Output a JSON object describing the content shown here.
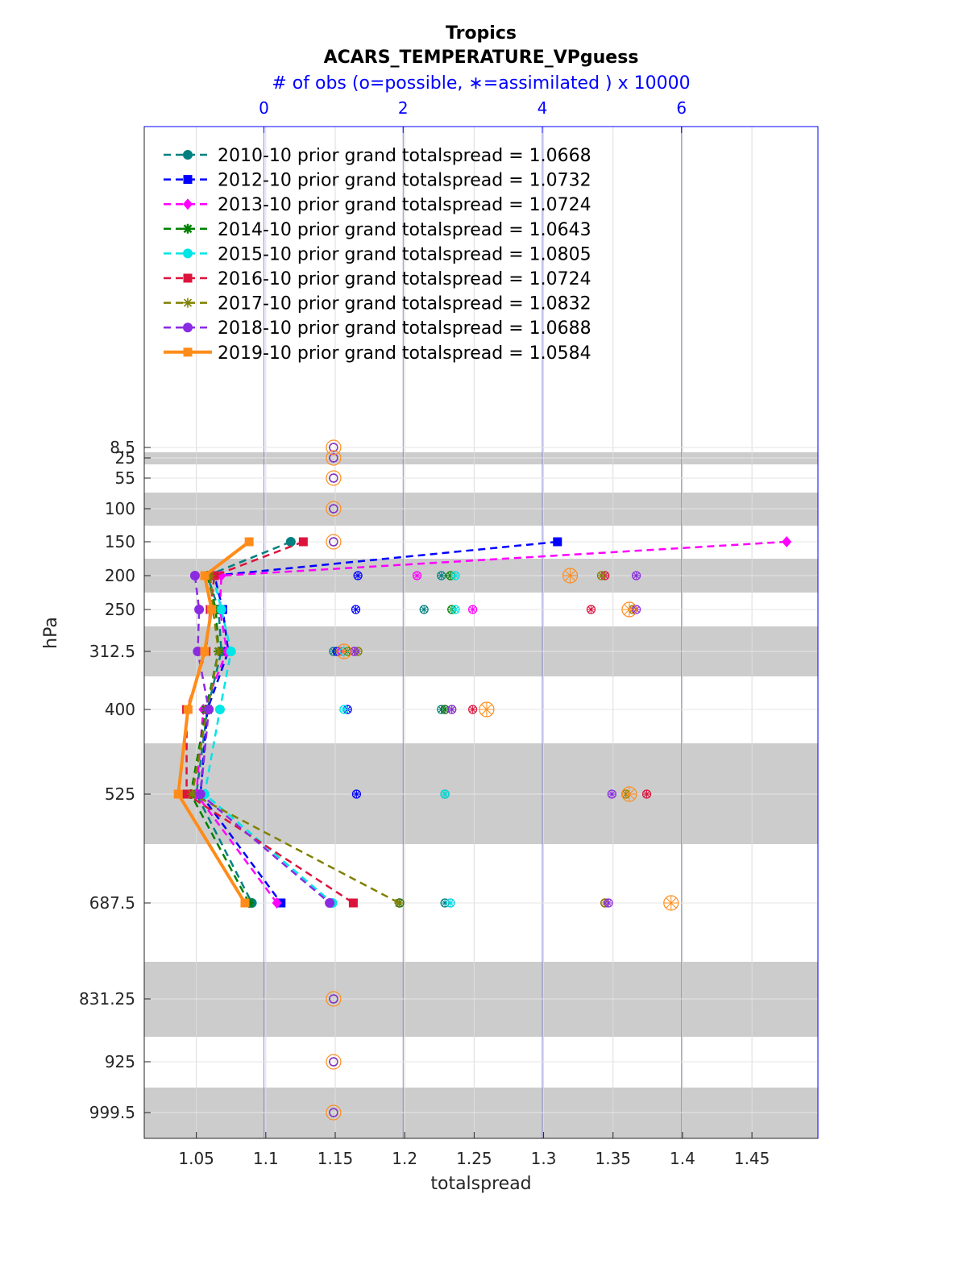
{
  "chart_data": {
    "type": "line",
    "title": "Tropics",
    "subtitle": "ACARS_TEMPERATURE_VPguess",
    "top_axis_label": "# of obs (o=possible, ∗=assimilated ) x 10000",
    "top_axis_ticks": [
      "0",
      "2",
      "4",
      "6"
    ],
    "top_axis_range": [
      -1.72,
      7.96
    ],
    "xlabel": "totalspread",
    "ylabel": "hPa",
    "xlim": [
      1.0125,
      1.4975
    ],
    "x_ticks": [
      1.05,
      1.1,
      1.15,
      1.2,
      1.25,
      1.3,
      1.35,
      1.4,
      1.45
    ],
    "x_tick_labels": [
      "1.05",
      "1.1",
      "1.15",
      "1.2",
      "1.25",
      "1.3",
      "1.35",
      "1.4",
      "1.45"
    ],
    "levels": [
      8.5,
      25,
      55,
      100,
      150,
      200,
      250,
      312.5,
      400,
      525,
      687.5,
      831.25,
      925,
      999.5
    ],
    "level_labels": [
      "8.5",
      "25",
      "55",
      "100",
      "150",
      "200",
      "250",
      "312.5",
      "400",
      "525",
      "687.5",
      "831.25",
      "925",
      "999.5"
    ],
    "legend_position": "top-left",
    "series": [
      {
        "name": "2010-10 prior grand totalspread = 1.0668",
        "color": "#008080",
        "marker": "circle",
        "style": "dashed",
        "values": [
          [
            1.118,
            150
          ],
          [
            1.058,
            200
          ],
          [
            1.066,
            250
          ],
          [
            1.068,
            312.5
          ],
          [
            1.058,
            400
          ],
          [
            1.05,
            525
          ],
          [
            1.09,
            687.5
          ]
        ]
      },
      {
        "name": "2012-10 prior grand totalspread = 1.0732",
        "color": "#0000ff",
        "marker": "square",
        "style": "dashed",
        "values": [
          [
            1.31,
            150
          ],
          [
            1.063,
            200
          ],
          [
            1.069,
            250
          ],
          [
            1.073,
            312.5
          ],
          [
            1.058,
            400
          ],
          [
            1.053,
            525
          ],
          [
            1.111,
            687.5
          ]
        ]
      },
      {
        "name": "2013-10 prior grand totalspread = 1.0724",
        "color": "#ff00ff",
        "marker": "diamond",
        "style": "dashed",
        "values": [
          [
            1.475,
            150
          ],
          [
            1.068,
            200
          ],
          [
            1.067,
            250
          ],
          [
            1.072,
            312.5
          ],
          [
            1.055,
            400
          ],
          [
            1.05,
            525
          ],
          [
            1.108,
            687.5
          ]
        ]
      },
      {
        "name": "2014-10 prior grand totalspread = 1.0643",
        "color": "#008000",
        "marker": "star",
        "style": "dashed",
        "values": [
          [
            1.058,
            200
          ],
          [
            1.064,
            250
          ],
          [
            1.066,
            312.5
          ],
          [
            1.057,
            400
          ],
          [
            1.046,
            525
          ],
          [
            1.088,
            687.5
          ]
        ]
      },
      {
        "name": "2015-10 prior grand totalspread = 1.0805",
        "color": "#00e5e5",
        "marker": "circle",
        "style": "dashed",
        "values": [
          [
            1.062,
            200
          ],
          [
            1.068,
            250
          ],
          [
            1.075,
            312.5
          ],
          [
            1.067,
            400
          ],
          [
            1.056,
            525
          ],
          [
            1.148,
            687.5
          ]
        ]
      },
      {
        "name": "2016-10 prior grand totalspread = 1.0724",
        "color": "#dc143c",
        "marker": "square",
        "style": "dashed",
        "values": [
          [
            1.127,
            150
          ],
          [
            1.063,
            200
          ],
          [
            1.06,
            250
          ],
          [
            1.057,
            312.5
          ],
          [
            1.043,
            400
          ],
          [
            1.043,
            525
          ],
          [
            1.163,
            687.5
          ]
        ]
      },
      {
        "name": "2017-10 prior grand totalspread = 1.0832",
        "color": "#808000",
        "marker": "asterisk",
        "style": "dashed",
        "values": [
          [
            1.06,
            200
          ],
          [
            1.062,
            250
          ],
          [
            1.066,
            312.5
          ],
          [
            1.058,
            400
          ],
          [
            1.047,
            525
          ],
          [
            1.196,
            687.5
          ]
        ]
      },
      {
        "name": "2018-10 prior grand totalspread = 1.0688",
        "color": "#8a2be2",
        "marker": "circle",
        "style": "dashed",
        "values": [
          [
            1.049,
            200
          ],
          [
            1.052,
            250
          ],
          [
            1.051,
            312.5
          ],
          [
            1.059,
            400
          ],
          [
            1.053,
            525
          ],
          [
            1.146,
            687.5
          ]
        ]
      },
      {
        "name": "2019-10 prior grand totalspread = 1.0584",
        "color": "#ff8c1a",
        "marker": "square",
        "style": "solid",
        "values": [
          [
            1.088,
            150
          ],
          [
            1.056,
            200
          ],
          [
            1.061,
            250
          ],
          [
            1.056,
            312.5
          ],
          [
            1.044,
            400
          ],
          [
            1.037,
            525
          ],
          [
            1.085,
            687.5
          ]
        ]
      }
    ],
    "obs_counts": [
      {
        "series": "2010-10",
        "color": "#008080",
        "possible": [
          [
            1.0,
            8.5
          ],
          [
            1.0,
            25
          ],
          [
            1.0,
            55
          ],
          [
            1.0,
            100
          ],
          [
            1.0,
            150
          ],
          [
            2.55,
            200
          ],
          [
            2.3,
            250
          ],
          [
            1.0,
            312.5
          ],
          [
            2.55,
            400
          ],
          [
            2.6,
            525
          ],
          [
            2.6,
            687.5
          ],
          [
            1.0,
            831.25
          ],
          [
            1.0,
            925
          ],
          [
            1.0,
            999.5
          ]
        ],
        "assimilated": [
          [
            2.55,
            200
          ],
          [
            2.3,
            250
          ],
          [
            1.0,
            312.5
          ],
          [
            2.55,
            400
          ],
          [
            2.6,
            525
          ],
          [
            2.6,
            687.5
          ]
        ]
      },
      {
        "series": "2012-10",
        "color": "#0000ff",
        "possible": [
          [
            1.0,
            8.5
          ],
          [
            1.0,
            25
          ],
          [
            1.0,
            55
          ],
          [
            1.0,
            100
          ],
          [
            1.0,
            150
          ],
          [
            1.35,
            200
          ],
          [
            1.32,
            250
          ],
          [
            1.05,
            312.5
          ],
          [
            1.2,
            400
          ],
          [
            1.33,
            525
          ],
          [
            1.95,
            687.5
          ],
          [
            1.0,
            831.25
          ],
          [
            1.0,
            925
          ],
          [
            1.0,
            999.5
          ]
        ],
        "assimilated": [
          [
            1.35,
            200
          ],
          [
            1.32,
            250
          ],
          [
            1.05,
            312.5
          ],
          [
            1.2,
            400
          ],
          [
            1.33,
            525
          ],
          [
            1.95,
            687.5
          ]
        ]
      },
      {
        "series": "2013-10",
        "color": "#ff00ff",
        "possible": [
          [
            1.0,
            8.5
          ],
          [
            1.0,
            25
          ],
          [
            1.0,
            55
          ],
          [
            1.0,
            100
          ],
          [
            1.0,
            150
          ],
          [
            2.2,
            200
          ],
          [
            3.0,
            250
          ],
          [
            1.12,
            312.5
          ],
          [
            2.6,
            400
          ],
          [
            2.6,
            525
          ],
          [
            2.68,
            687.5
          ],
          [
            1.0,
            831.25
          ],
          [
            1.0,
            925
          ],
          [
            1.0,
            999.5
          ]
        ],
        "assimilated": [
          [
            2.2,
            200
          ],
          [
            3.0,
            250
          ],
          [
            1.12,
            312.5
          ],
          [
            2.6,
            400
          ],
          [
            2.6,
            525
          ],
          [
            2.68,
            687.5
          ]
        ]
      },
      {
        "series": "2014-10",
        "color": "#008000",
        "possible": [
          [
            1.0,
            8.5
          ],
          [
            1.0,
            25
          ],
          [
            1.0,
            55
          ],
          [
            1.0,
            100
          ],
          [
            1.0,
            150
          ],
          [
            2.68,
            200
          ],
          [
            2.7,
            250
          ],
          [
            1.2,
            312.5
          ],
          [
            2.6,
            400
          ],
          [
            2.6,
            525
          ],
          [
            1.95,
            687.5
          ],
          [
            1.0,
            831.25
          ],
          [
            1.0,
            925
          ],
          [
            1.0,
            999.5
          ]
        ],
        "assimilated": [
          [
            2.68,
            200
          ],
          [
            2.7,
            250
          ],
          [
            1.2,
            312.5
          ],
          [
            2.6,
            400
          ],
          [
            2.6,
            525
          ],
          [
            1.95,
            687.5
          ]
        ]
      },
      {
        "series": "2015-10",
        "color": "#00e5e5",
        "possible": [
          [
            1.0,
            8.5
          ],
          [
            1.0,
            25
          ],
          [
            1.0,
            55
          ],
          [
            1.0,
            100
          ],
          [
            1.0,
            150
          ],
          [
            2.75,
            200
          ],
          [
            2.75,
            250
          ],
          [
            1.15,
            312.5
          ],
          [
            1.15,
            400
          ],
          [
            2.6,
            525
          ],
          [
            2.68,
            687.5
          ],
          [
            1.0,
            831.25
          ],
          [
            1.0,
            925
          ],
          [
            1.0,
            999.5
          ]
        ],
        "assimilated": [
          [
            2.75,
            200
          ],
          [
            2.75,
            250
          ],
          [
            1.15,
            312.5
          ],
          [
            1.15,
            400
          ],
          [
            2.6,
            525
          ],
          [
            2.68,
            687.5
          ]
        ]
      },
      {
        "series": "2016-10",
        "color": "#dc143c",
        "possible": [
          [
            1.0,
            8.5
          ],
          [
            1.0,
            25
          ],
          [
            1.0,
            55
          ],
          [
            1.0,
            100
          ],
          [
            1.0,
            150
          ],
          [
            4.9,
            200
          ],
          [
            4.7,
            250
          ],
          [
            1.3,
            312.5
          ],
          [
            3.0,
            400
          ],
          [
            5.5,
            525
          ],
          [
            4.9,
            687.5
          ],
          [
            1.0,
            831.25
          ],
          [
            1.0,
            925
          ],
          [
            1.0,
            999.5
          ]
        ],
        "assimilated": [
          [
            4.9,
            200
          ],
          [
            4.7,
            250
          ],
          [
            1.3,
            312.5
          ],
          [
            3.0,
            400
          ],
          [
            5.5,
            525
          ],
          [
            4.9,
            687.5
          ]
        ]
      },
      {
        "series": "2017-10",
        "color": "#808000",
        "possible": [
          [
            1.0,
            8.5
          ],
          [
            1.0,
            25
          ],
          [
            1.0,
            55
          ],
          [
            1.0,
            100
          ],
          [
            1.0,
            150
          ],
          [
            4.85,
            200
          ],
          [
            5.3,
            250
          ],
          [
            1.35,
            312.5
          ],
          [
            2.7,
            400
          ],
          [
            5.2,
            525
          ],
          [
            4.9,
            687.5
          ],
          [
            1.0,
            831.25
          ],
          [
            1.0,
            925
          ],
          [
            1.0,
            999.5
          ]
        ],
        "assimilated": [
          [
            4.85,
            200
          ],
          [
            5.3,
            250
          ],
          [
            1.35,
            312.5
          ],
          [
            2.7,
            400
          ],
          [
            5.2,
            525
          ],
          [
            4.9,
            687.5
          ]
        ]
      },
      {
        "series": "2018-10",
        "color": "#8a2be2",
        "possible": [
          [
            1.0,
            8.5
          ],
          [
            1.0,
            25
          ],
          [
            1.0,
            55
          ],
          [
            1.0,
            100
          ],
          [
            1.0,
            150
          ],
          [
            5.35,
            200
          ],
          [
            5.35,
            250
          ],
          [
            1.3,
            312.5
          ],
          [
            2.7,
            400
          ],
          [
            5.0,
            525
          ],
          [
            4.95,
            687.5
          ],
          [
            1.0,
            831.25
          ],
          [
            1.0,
            925
          ],
          [
            1.0,
            999.5
          ]
        ],
        "assimilated": [
          [
            5.35,
            200
          ],
          [
            5.35,
            250
          ],
          [
            1.3,
            312.5
          ],
          [
            2.7,
            400
          ],
          [
            5.0,
            525
          ],
          [
            4.95,
            687.5
          ]
        ]
      },
      {
        "series": "2019-10",
        "color": "#ff8c1a",
        "possible": [
          [
            1.0,
            8.5
          ],
          [
            1.0,
            25
          ],
          [
            1.0,
            55
          ],
          [
            1.0,
            100
          ],
          [
            1.0,
            150
          ],
          [
            4.4,
            200
          ],
          [
            5.25,
            250
          ],
          [
            1.15,
            312.5
          ],
          [
            3.2,
            400
          ],
          [
            5.25,
            525
          ],
          [
            5.85,
            687.5
          ],
          [
            1.0,
            831.25
          ],
          [
            1.0,
            925
          ],
          [
            1.0,
            999.5
          ]
        ],
        "assimilated": [
          [
            4.4,
            200
          ],
          [
            5.25,
            250
          ],
          [
            1.15,
            312.5
          ],
          [
            3.2,
            400
          ],
          [
            5.25,
            525
          ],
          [
            5.85,
            687.5
          ]
        ]
      }
    ]
  }
}
